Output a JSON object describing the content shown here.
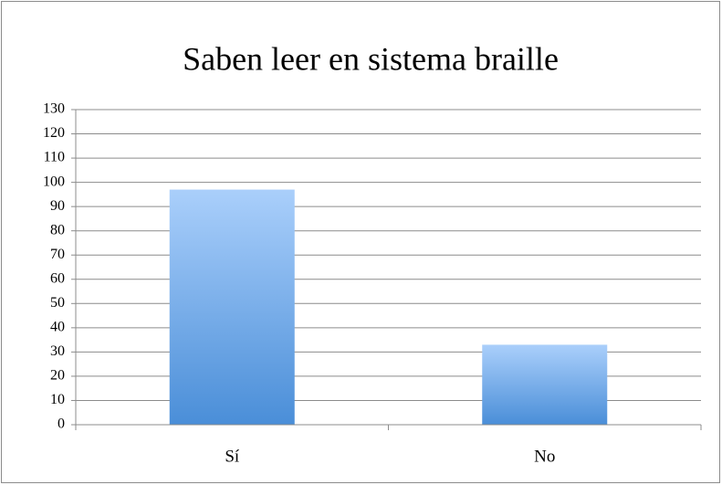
{
  "chart_data": {
    "type": "bar",
    "title": "Saben leer en sistema braille",
    "categories": [
      "Sí",
      "No"
    ],
    "values": [
      97,
      33
    ],
    "gradient": [
      "#aacffb",
      "#4a8ed8"
    ],
    "ylim": [
      0,
      130
    ],
    "yticks": [
      0,
      10,
      20,
      30,
      40,
      50,
      60,
      70,
      80,
      90,
      100,
      110,
      120,
      130
    ],
    "grid": true
  }
}
